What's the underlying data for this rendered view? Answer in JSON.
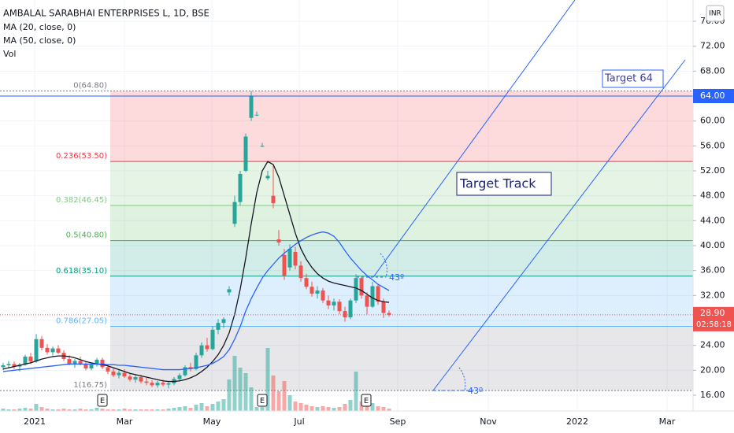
{
  "header": {
    "symbol": "AMBALAL SARABHAI ENTERPRISES L, 1D, BSE",
    "currency": "INR"
  },
  "chart_data": {
    "type": "candlestick",
    "up_color": "#26a69a",
    "down_color": "#ef5350",
    "candles": [
      [
        20.5,
        21.2,
        20.0,
        20.8
      ],
      [
        20.8,
        21.5,
        20.3,
        21.0
      ],
      [
        21.0,
        21.4,
        20.2,
        20.6
      ],
      [
        20.6,
        21.2,
        19.8,
        20.9
      ],
      [
        20.9,
        22.5,
        20.7,
        22.2
      ],
      [
        22.2,
        22.8,
        21.0,
        21.4
      ],
      [
        21.4,
        25.8,
        21.2,
        25.0
      ],
      [
        25.0,
        25.5,
        23.2,
        23.6
      ],
      [
        23.6,
        24.2,
        22.5,
        22.9
      ],
      [
        22.9,
        23.8,
        22.4,
        23.5
      ],
      [
        23.5,
        24.0,
        22.6,
        22.8
      ],
      [
        22.8,
        23.2,
        21.5,
        21.8
      ],
      [
        21.8,
        22.4,
        20.8,
        21.0
      ],
      [
        21.0,
        21.8,
        20.4,
        21.5
      ],
      [
        21.5,
        22.2,
        20.8,
        21.0
      ],
      [
        21.0,
        21.4,
        20.0,
        20.3
      ],
      [
        20.3,
        21.2,
        20.0,
        20.9
      ],
      [
        20.9,
        22.0,
        20.6,
        21.7
      ],
      [
        21.7,
        22.0,
        20.2,
        20.5
      ],
      [
        20.5,
        21.0,
        19.4,
        19.8
      ],
      [
        19.8,
        20.3,
        18.9,
        19.2
      ],
      [
        19.2,
        20.0,
        18.7,
        19.6
      ],
      [
        19.6,
        20.2,
        18.8,
        19.0
      ],
      [
        19.0,
        19.4,
        18.2,
        18.5
      ],
      [
        18.5,
        19.2,
        18.0,
        18.9
      ],
      [
        18.9,
        19.3,
        17.9,
        18.2
      ],
      [
        18.2,
        18.8,
        17.6,
        18.0
      ],
      [
        18.0,
        18.4,
        17.3,
        17.6
      ],
      [
        17.6,
        18.3,
        17.2,
        18.0
      ],
      [
        18.0,
        18.5,
        17.4,
        17.7
      ],
      [
        17.7,
        18.2,
        17.1,
        17.9
      ],
      [
        17.9,
        18.9,
        17.6,
        18.6
      ],
      [
        18.6,
        19.5,
        18.2,
        19.2
      ],
      [
        19.2,
        20.8,
        19.0,
        20.5
      ],
      [
        20.5,
        21.2,
        19.8,
        20.2
      ],
      [
        20.2,
        22.8,
        20.0,
        22.4
      ],
      [
        22.4,
        24.5,
        22.0,
        24.0
      ],
      [
        24.0,
        25.2,
        23.0,
        23.4
      ],
      [
        23.4,
        27.0,
        23.2,
        26.5
      ],
      [
        26.5,
        28.2,
        25.8,
        27.6
      ],
      [
        27.6,
        28.5,
        26.8,
        28.2
      ],
      [
        32.5,
        33.5,
        32.0,
        33.0
      ],
      [
        43.5,
        48.0,
        43.0,
        47.0
      ],
      [
        47.0,
        52.0,
        46.5,
        51.5
      ],
      [
        52.0,
        58.0,
        51.8,
        57.5
      ],
      [
        60.5,
        64.8,
        60.0,
        64.0
      ],
      [
        61.0,
        61.5,
        60.8,
        61.0
      ],
      [
        56.0,
        56.5,
        55.8,
        56.0
      ],
      [
        50.8,
        52.0,
        50.5,
        51.2
      ],
      [
        48.0,
        52.8,
        46.0,
        46.8
      ],
      [
        41.0,
        42.5,
        40.0,
        40.5
      ],
      [
        38.5,
        39.5,
        34.5,
        35.2
      ],
      [
        36.5,
        40.2,
        36.0,
        39.5
      ],
      [
        39.0,
        39.8,
        36.2,
        36.8
      ],
      [
        36.8,
        37.5,
        34.2,
        34.8
      ],
      [
        34.8,
        35.5,
        33.0,
        33.4
      ],
      [
        33.4,
        34.2,
        31.8,
        32.3
      ],
      [
        32.3,
        33.5,
        31.5,
        32.8
      ],
      [
        32.8,
        33.2,
        30.8,
        31.2
      ],
      [
        31.2,
        32.0,
        29.8,
        30.4
      ],
      [
        30.4,
        31.5,
        29.6,
        31.0
      ],
      [
        31.0,
        31.4,
        29.0,
        29.5
      ],
      [
        29.5,
        30.2,
        27.8,
        28.5
      ],
      [
        28.5,
        31.5,
        28.2,
        31.2
      ],
      [
        31.2,
        35.4,
        30.8,
        34.8
      ],
      [
        34.8,
        35.0,
        31.5,
        32.0
      ],
      [
        32.0,
        32.5,
        29.0,
        30.2
      ],
      [
        30.2,
        34.2,
        30.0,
        33.5
      ],
      [
        33.5,
        33.8,
        30.5,
        31.0
      ],
      [
        31.0,
        31.5,
        28.4,
        29.2
      ],
      [
        29.2,
        29.6,
        28.6,
        28.9
      ]
    ],
    "series": [
      {
        "name": "MA (20, close, 0)",
        "color": "#131722",
        "values": [
          20.2,
          20.4,
          20.6,
          20.8,
          21.0,
          21.2,
          21.5,
          21.8,
          22.0,
          22.2,
          22.3,
          22.3,
          22.2,
          22.0,
          21.7,
          21.4,
          21.2,
          21.0,
          20.9,
          20.7,
          20.4,
          20.1,
          19.8,
          19.5,
          19.3,
          19.1,
          18.9,
          18.7,
          18.5,
          18.3,
          18.2,
          18.2,
          18.3,
          18.5,
          18.8,
          19.2,
          19.8,
          20.5,
          21.4,
          22.5,
          24.0,
          26.0,
          29.0,
          33.0,
          38.0,
          43.5,
          48.5,
          52.0,
          53.5,
          53.0,
          51.0,
          48.0,
          45.0,
          42.0,
          39.5,
          37.8,
          36.5,
          35.5,
          34.8,
          34.3,
          34.0,
          33.8,
          33.6,
          33.4,
          33.2,
          32.8,
          32.2,
          31.6,
          31.2,
          31.0,
          30.9
        ]
      },
      {
        "name": "MA (50, close, 0)",
        "color": "#2962ff",
        "values": [
          19.8,
          19.9,
          20.0,
          20.1,
          20.2,
          20.3,
          20.4,
          20.5,
          20.6,
          20.7,
          20.8,
          20.9,
          21.0,
          21.0,
          21.0,
          21.0,
          21.0,
          21.0,
          21.0,
          20.9,
          20.9,
          20.8,
          20.8,
          20.7,
          20.6,
          20.5,
          20.4,
          20.3,
          20.2,
          20.1,
          20.1,
          20.1,
          20.1,
          20.2,
          20.3,
          20.4,
          20.6,
          20.8,
          21.1,
          21.6,
          22.2,
          23.3,
          25.0,
          27.0,
          29.5,
          31.5,
          33.2,
          34.8,
          36.0,
          37.0,
          38.0,
          38.8,
          39.5,
          40.2,
          40.8,
          41.3,
          41.7,
          42.0,
          42.2,
          42.0,
          41.5,
          40.5,
          39.2,
          38.0,
          37.0,
          36.0,
          35.2,
          34.5,
          33.8,
          33.3,
          32.8
        ]
      }
    ],
    "volume": {
      "name": "Vol",
      "values": [
        3,
        2,
        2,
        3,
        4,
        3,
        9,
        5,
        3,
        2,
        2,
        3,
        2,
        2,
        3,
        2,
        2,
        4,
        3,
        2,
        2,
        2,
        3,
        2,
        2,
        2,
        2,
        2,
        2,
        2,
        3,
        4,
        5,
        6,
        4,
        8,
        10,
        6,
        9,
        12,
        15,
        40,
        70,
        55,
        48,
        30,
        5,
        5,
        80,
        45,
        25,
        38,
        20,
        12,
        10,
        8,
        6,
        5,
        6,
        5,
        4,
        5,
        9,
        14,
        50,
        12,
        8,
        10,
        6,
        5,
        3
      ]
    },
    "ylim": [
      16,
      76
    ],
    "yticks": [
      {
        "value": 16,
        "label": "16.00"
      },
      {
        "value": 20,
        "label": "20.00"
      },
      {
        "value": 24,
        "label": "24.00"
      },
      {
        "value": 28,
        "label": "28.00"
      },
      {
        "value": 32,
        "label": "32.00"
      },
      {
        "value": 36,
        "label": "36.00"
      },
      {
        "value": 40,
        "label": "40.00"
      },
      {
        "value": 44,
        "label": "44.00"
      },
      {
        "value": 48,
        "label": "48.00"
      },
      {
        "value": 52,
        "label": "52.00"
      },
      {
        "value": 56,
        "label": "56.00"
      },
      {
        "value": 60,
        "label": "60.00"
      },
      {
        "value": 64,
        "label": "64.00"
      },
      {
        "value": 68,
        "label": "68.00"
      },
      {
        "value": 72,
        "label": "72.00"
      },
      {
        "value": 76,
        "label": "76.00"
      }
    ],
    "xticks": [
      "2021",
      "Mar",
      "May",
      "Jul",
      "Sep",
      "Nov",
      "2022",
      "Mar"
    ],
    "fib_levels": [
      {
        "label": "0(64.80)",
        "value": 64.8,
        "color": "#787b86"
      },
      {
        "label": "0.236(53.50)",
        "value": 53.5,
        "color": "#f23645"
      },
      {
        "label": "0.382(46.45)",
        "value": 46.45,
        "color": "#81c784"
      },
      {
        "label": "0.5(40.80)",
        "value": 40.8,
        "color": "#4caf50"
      },
      {
        "label": "0.618(35.10)",
        "value": 35.1,
        "color": "#089981"
      },
      {
        "label": "0.786(27.05)",
        "value": 27.05,
        "color": "#64b5f6"
      },
      {
        "label": "1(16.75)",
        "value": 16.75,
        "color": "#787b86"
      }
    ],
    "target_price": {
      "value": 64,
      "label": "64.00"
    },
    "last_price": {
      "value": 28.9,
      "label": "28.90"
    },
    "countdown": "02:58:18",
    "annotations": {
      "target_64": "Target 64",
      "target_track": "Target Track",
      "angle_labels": [
        "43º",
        "43º"
      ]
    },
    "earnings_markers": [
      "E",
      "E",
      "E"
    ]
  }
}
